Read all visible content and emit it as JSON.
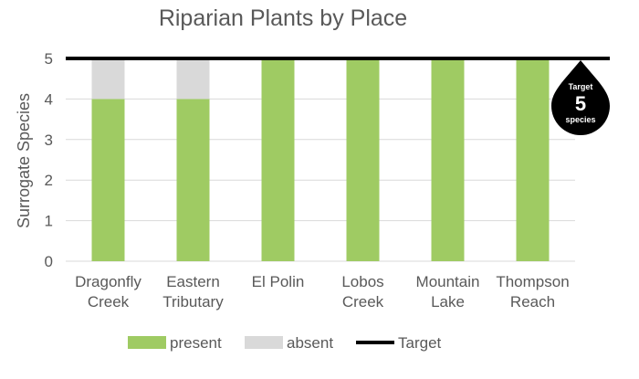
{
  "chart_data": {
    "type": "bar",
    "stacked": true,
    "title": "Riparian Plants by Place",
    "xlabel": "",
    "ylabel": "Surrogate Species",
    "ylim": [
      0,
      5
    ],
    "yticks": [
      0,
      1,
      2,
      3,
      4,
      5
    ],
    "grid": true,
    "legend_position": "bottom",
    "categories": [
      [
        "Dragonfly",
        "Creek"
      ],
      [
        "Eastern",
        "Tributary"
      ],
      [
        "El Polin"
      ],
      [
        "Lobos",
        "Creek"
      ],
      [
        "Mountain",
        "Lake"
      ],
      [
        "Thompson",
        "Reach"
      ]
    ],
    "series": [
      {
        "name": "present",
        "color": "#9fcb63",
        "values": [
          4,
          4,
          5,
          5,
          5,
          5
        ]
      },
      {
        "name": "absent",
        "color": "#d9d9d9",
        "values": [
          1,
          1,
          0,
          0,
          0,
          0
        ]
      }
    ],
    "target": {
      "name": "Target",
      "value": 5,
      "color": "#000000",
      "badge": {
        "top": "Target",
        "value": "5",
        "bottom": "species"
      }
    }
  }
}
